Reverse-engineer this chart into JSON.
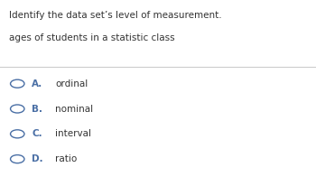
{
  "title": "Identify the data set’s level of measurement.",
  "subtitle": "ages of students in a statistic class",
  "options": [
    {
      "label": "A.",
      "text": "ordinal"
    },
    {
      "label": "B.",
      "text": "nominal"
    },
    {
      "label": "C.",
      "text": "interval"
    },
    {
      "label": "D.",
      "text": "ratio"
    }
  ],
  "bg_color": "#ffffff",
  "text_color": "#333333",
  "label_color": "#4a6fa5",
  "circle_color": "#4a6fa5",
  "title_fontsize": 7.5,
  "subtitle_fontsize": 7.5,
  "option_fontsize": 7.5,
  "line_color": "#cccccc"
}
